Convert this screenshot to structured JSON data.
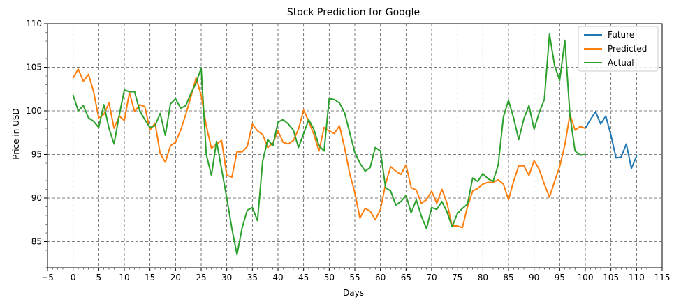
{
  "chart_data": {
    "type": "line",
    "title": "Stock Prediction for Google",
    "xlabel": "Days",
    "ylabel": "Price in USD",
    "xlim": [
      -5,
      115
    ],
    "ylim": [
      82,
      110
    ],
    "xticks": [
      "−5",
      "0",
      "5",
      "10",
      "15",
      "20",
      "25",
      "30",
      "35",
      "40",
      "45",
      "50",
      "55",
      "60",
      "65",
      "70",
      "75",
      "80",
      "85",
      "90",
      "95",
      "100",
      "105",
      "110",
      "115"
    ],
    "yticks": [
      "85",
      "90",
      "95",
      "100",
      "105",
      "110"
    ],
    "grid": true,
    "legend_position": "top-right",
    "series": [
      {
        "name": "Future",
        "color": "#1f77b4",
        "x": [
          100,
          101,
          102,
          103,
          104,
          105,
          106,
          107,
          108,
          109,
          110
        ],
        "y": [
          98.0,
          99.0,
          99.9,
          98.5,
          99.4,
          97.2,
          94.6,
          94.7,
          96.2,
          93.4,
          94.8
        ]
      },
      {
        "name": "Predicted",
        "color": "#ff7f0e",
        "x": [
          0,
          1,
          2,
          3,
          4,
          5,
          6,
          7,
          8,
          9,
          10,
          11,
          12,
          13,
          14,
          15,
          16,
          17,
          18,
          19,
          20,
          21,
          22,
          23,
          24,
          25,
          26,
          27,
          28,
          29,
          30,
          31,
          32,
          33,
          34,
          35,
          36,
          37,
          38,
          39,
          40,
          41,
          42,
          43,
          44,
          45,
          46,
          47,
          48,
          49,
          50,
          51,
          52,
          53,
          54,
          55,
          56,
          57,
          58,
          59,
          60,
          61,
          62,
          63,
          64,
          65,
          66,
          67,
          68,
          69,
          70,
          71,
          72,
          73,
          74,
          75,
          76,
          77,
          78,
          79,
          80,
          81,
          82,
          83,
          84,
          85,
          86,
          87,
          88,
          89,
          90,
          91,
          92,
          93,
          94,
          95,
          96,
          97,
          98,
          99,
          100
        ],
        "y": [
          103.8,
          104.8,
          103.4,
          104.2,
          102.2,
          99.2,
          99.6,
          100.9,
          98.0,
          99.4,
          98.9,
          102.1,
          99.9,
          100.7,
          100.5,
          97.8,
          98.6,
          95.1,
          94.1,
          96.0,
          96.4,
          97.8,
          99.6,
          101.6,
          103.8,
          101.8,
          98.3,
          95.7,
          96.2,
          96.6,
          92.6,
          92.4,
          95.3,
          95.3,
          95.9,
          98.5,
          97.7,
          97.3,
          95.8,
          96.3,
          97.7,
          96.4,
          96.2,
          96.6,
          97.9,
          100.1,
          98.8,
          97.3,
          95.4,
          98.1,
          97.7,
          97.4,
          98.3,
          95.8,
          92.8,
          90.6,
          87.7,
          88.8,
          88.5,
          87.5,
          88.7,
          91.6,
          93.6,
          93.1,
          92.7,
          93.8,
          91.2,
          90.9,
          89.4,
          89.8,
          90.8,
          89.4,
          91.0,
          89.4,
          86.8,
          86.8,
          86.6,
          89.0,
          90.8,
          91.1,
          91.6,
          91.8,
          91.8,
          92.1,
          91.6,
          89.8,
          91.9,
          93.7,
          93.7,
          92.6,
          94.3,
          93.3,
          91.6,
          90.1,
          91.9,
          93.6,
          96.1,
          99.6,
          97.8,
          98.2,
          98.0
        ]
      },
      {
        "name": "Actual",
        "color": "#2ca02c",
        "x": [
          0,
          1,
          2,
          3,
          4,
          5,
          6,
          7,
          8,
          9,
          10,
          11,
          12,
          13,
          14,
          15,
          16,
          17,
          18,
          19,
          20,
          21,
          22,
          23,
          24,
          25,
          26,
          27,
          28,
          29,
          30,
          31,
          32,
          33,
          34,
          35,
          36,
          37,
          38,
          39,
          40,
          41,
          42,
          43,
          44,
          45,
          46,
          47,
          48,
          49,
          50,
          51,
          52,
          53,
          54,
          55,
          56,
          57,
          58,
          59,
          60,
          61,
          62,
          63,
          64,
          65,
          66,
          67,
          68,
          69,
          70,
          71,
          72,
          73,
          74,
          75,
          76,
          77,
          78,
          79,
          80,
          81,
          82,
          83,
          84,
          85,
          86,
          87,
          88,
          89,
          90,
          91,
          92,
          93,
          94,
          95,
          96,
          97,
          98,
          99,
          100
        ],
        "y": [
          101.8,
          100.0,
          100.6,
          99.2,
          98.8,
          98.1,
          100.7,
          98.0,
          96.2,
          99.5,
          102.4,
          102.2,
          102.2,
          100.0,
          99.0,
          98.1,
          98.3,
          99.7,
          97.2,
          100.8,
          101.4,
          100.3,
          100.6,
          102.0,
          103.2,
          104.9,
          95.0,
          92.6,
          96.5,
          93.3,
          90.0,
          86.5,
          83.5,
          86.6,
          88.6,
          88.9,
          87.4,
          94.2,
          96.7,
          96.0,
          98.7,
          99.0,
          98.5,
          97.8,
          95.8,
          97.4,
          99.0,
          97.9,
          96.0,
          95.4,
          101.4,
          101.3,
          100.9,
          99.8,
          97.5,
          95.2,
          94.0,
          93.1,
          93.5,
          95.8,
          95.4,
          91.2,
          90.8,
          89.2,
          89.6,
          90.3,
          88.3,
          89.8,
          87.9,
          86.5,
          88.9,
          88.7,
          89.6,
          88.4,
          86.7,
          88.2,
          88.8,
          89.3,
          92.3,
          91.9,
          92.8,
          92.2,
          91.9,
          93.8,
          99.3,
          101.2,
          99.2,
          96.7,
          99.1,
          100.6,
          97.9,
          99.8,
          101.3,
          108.8,
          105.2,
          103.5,
          108.1,
          99.5,
          95.4,
          94.9,
          95.0
        ]
      }
    ]
  }
}
